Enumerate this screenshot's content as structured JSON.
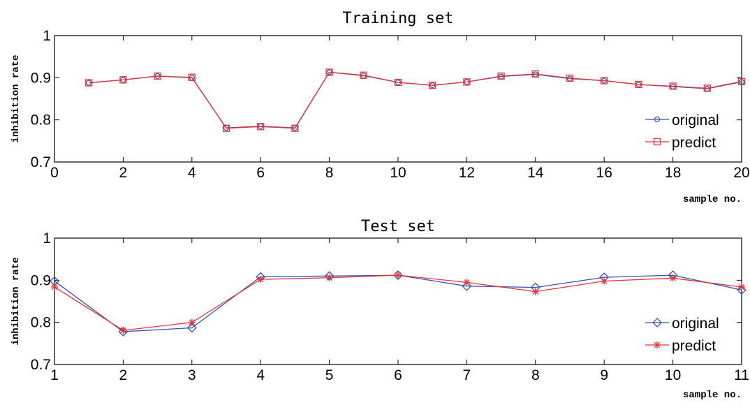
{
  "chart_data": [
    {
      "type": "line",
      "title": "Training set",
      "xlabel": "sample no.",
      "ylabel": "inhibition rate",
      "xlim": [
        0,
        20
      ],
      "ylim": [
        0.7,
        1
      ],
      "xticks": [
        "0",
        "2",
        "4",
        "6",
        "8",
        "10",
        "12",
        "14",
        "16",
        "18",
        "20"
      ],
      "yticks": [
        "0.7",
        "0.8",
        "0.9",
        "1"
      ],
      "legend_position": "bottom-right",
      "x": [
        1,
        2,
        3,
        4,
        5,
        6,
        7,
        8,
        9,
        10,
        11,
        12,
        13,
        14,
        15,
        16,
        17,
        18,
        19,
        20
      ],
      "series": [
        {
          "name": "original",
          "color": "#3a4fb0",
          "marker": "circle",
          "values": [
            0.888,
            0.895,
            0.904,
            0.9,
            0.781,
            0.785,
            0.781,
            0.913,
            0.905,
            0.889,
            0.882,
            0.89,
            0.903,
            0.908,
            0.898,
            0.893,
            0.884,
            0.879,
            0.874,
            0.89
          ]
        },
        {
          "name": "predict",
          "color": "#e8333a",
          "marker": "square",
          "values": [
            0.888,
            0.895,
            0.904,
            0.901,
            0.78,
            0.784,
            0.78,
            0.913,
            0.906,
            0.889,
            0.882,
            0.89,
            0.904,
            0.909,
            0.899,
            0.893,
            0.884,
            0.88,
            0.875,
            0.891
          ]
        }
      ]
    },
    {
      "type": "line",
      "title": "Test set",
      "xlabel": "sample no.",
      "ylabel": "inhibition rate",
      "xlim": [
        1,
        11
      ],
      "ylim": [
        0.7,
        1
      ],
      "xticks": [
        "1",
        "2",
        "3",
        "4",
        "5",
        "6",
        "7",
        "8",
        "9",
        "10",
        "11"
      ],
      "yticks": [
        "0.7",
        "0.8",
        "0.9",
        "1"
      ],
      "legend_position": "bottom-right",
      "x": [
        1,
        2,
        3,
        4,
        5,
        6,
        7,
        8,
        9,
        10,
        11
      ],
      "series": [
        {
          "name": "original",
          "color": "#3a4fb0",
          "marker": "diamond",
          "values": [
            0.898,
            0.778,
            0.787,
            0.908,
            0.91,
            0.912,
            0.886,
            0.883,
            0.907,
            0.912,
            0.877
          ]
        },
        {
          "name": "predict",
          "color": "#e8333a",
          "marker": "asterisk",
          "values": [
            0.884,
            0.781,
            0.8,
            0.902,
            0.906,
            0.912,
            0.895,
            0.873,
            0.898,
            0.905,
            0.884
          ]
        }
      ]
    }
  ]
}
